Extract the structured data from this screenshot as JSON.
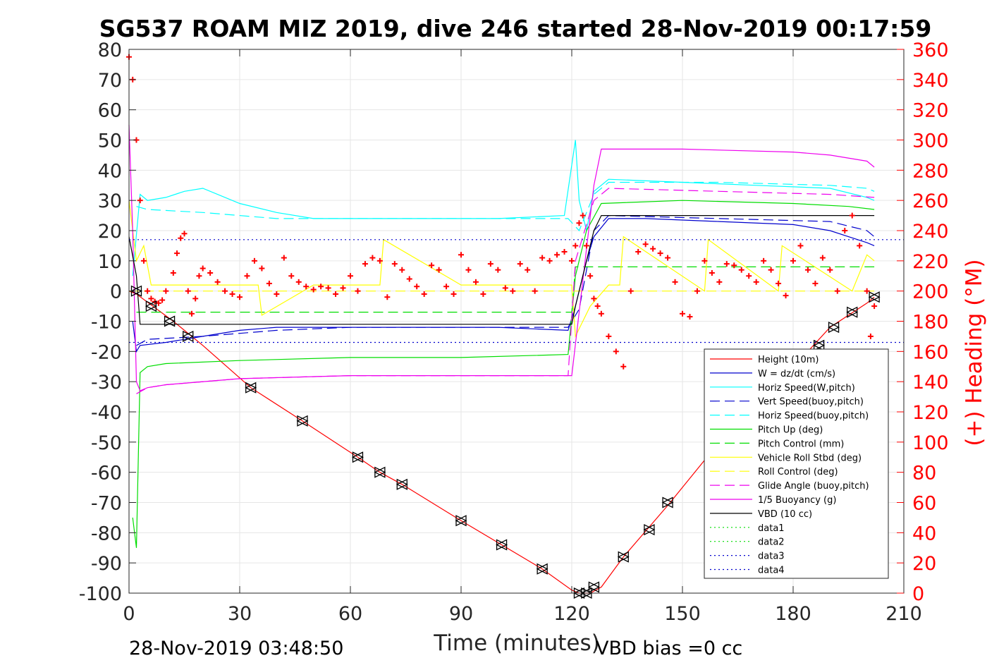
{
  "chart_data": {
    "type": "line",
    "title": "SG537 ROAM MIZ 2019, dive 246 started 28-Nov-2019 00:17:59",
    "xlabel": "Time (minutes)",
    "ylabel": "",
    "y2label": "(+) Heading (°M)",
    "xlim": [
      0,
      210
    ],
    "ylim": [
      -100,
      80
    ],
    "y2lim": [
      0,
      360
    ],
    "x_ticks": [
      "0",
      "30",
      "60",
      "90",
      "120",
      "150",
      "180",
      "210"
    ],
    "y_ticks": [
      "80",
      "70",
      "60",
      "50",
      "40",
      "30",
      "20",
      "10",
      "0",
      "-10",
      "-20",
      "-30",
      "-40",
      "-50",
      "-60",
      "-70",
      "-80",
      "-90",
      "-100"
    ],
    "y2_ticks": [
      "360",
      "340",
      "320",
      "300",
      "280",
      "260",
      "240",
      "220",
      "200",
      "180",
      "160",
      "140",
      "120",
      "100",
      "80",
      "60",
      "40",
      "20",
      "0"
    ],
    "grid": true,
    "legend_position": "bottom-right",
    "footer_left": "28-Nov-2019 03:48:50",
    "footer_right": "VBD bias =0 cc",
    "colors": {
      "red": "#ff0000",
      "blue": "#0000cd",
      "cyan": "#00ffff",
      "green": "#00dd00",
      "yellow": "#ffff00",
      "magenta": "#ee00ee",
      "black": "#000000"
    },
    "series": [
      {
        "name": "Height (10m)",
        "color": "#ff0000",
        "dash": "solid",
        "x": [
          0,
          2,
          12,
          20,
          33,
          47,
          62,
          68,
          74,
          90,
          101,
          112,
          120,
          122,
          125,
          128,
          134,
          146,
          160,
          175,
          190,
          200,
          202
        ],
        "y": [
          0,
          -1,
          -10,
          -18,
          -32,
          -43,
          -55,
          -60,
          -64,
          -76,
          -84,
          -92,
          -99,
          -100,
          -100,
          -98,
          -88,
          -71,
          -50,
          -32,
          -12,
          -4,
          -2
        ]
      },
      {
        "name": "W = dz/dt (cm/s)",
        "color": "#0000cd",
        "dash": "solid",
        "x": [
          1,
          2,
          3,
          10,
          20,
          30,
          40,
          60,
          80,
          100,
          119,
          121,
          124,
          126,
          130,
          140,
          160,
          180,
          190,
          195,
          200,
          202
        ],
        "y": [
          -10,
          -20,
          -18,
          -17,
          -15,
          -13,
          -12,
          -12,
          -12,
          -12,
          -13,
          -5,
          10,
          18,
          24,
          24,
          23,
          22,
          20,
          18,
          16,
          15
        ]
      },
      {
        "name": "Horiz Speed(W,pitch)",
        "color": "#00ffff",
        "dash": "solid",
        "x": [
          1,
          3,
          5,
          10,
          15,
          20,
          30,
          40,
          50,
          60,
          80,
          100,
          118,
          121,
          122,
          124,
          126,
          130,
          150,
          170,
          190,
          200,
          202
        ],
        "y": [
          5,
          32,
          30,
          31,
          33,
          34,
          29,
          26,
          24,
          24,
          24,
          24,
          25,
          50,
          30,
          20,
          33,
          37,
          36,
          35,
          34,
          31,
          30
        ]
      },
      {
        "name": "Vert Speed(buoy,pitch)",
        "color": "#0000cd",
        "dash": "dash",
        "x": [
          2,
          5,
          20,
          40,
          60,
          80,
          100,
          119,
          122,
          126,
          130,
          160,
          190,
          200,
          202
        ],
        "y": [
          -18,
          -16,
          -15,
          -13,
          -12,
          -12,
          -12,
          -12,
          -6,
          20,
          25,
          24,
          23,
          20,
          18
        ]
      },
      {
        "name": "Horiz Speed(buoy,pitch)",
        "color": "#00ffff",
        "dash": "dash",
        "x": [
          2,
          5,
          20,
          40,
          60,
          80,
          100,
          119,
          122,
          126,
          130,
          160,
          190,
          200,
          202
        ],
        "y": [
          28,
          27,
          26,
          24,
          24,
          24,
          24,
          24,
          20,
          32,
          36,
          36,
          35,
          34,
          33
        ]
      },
      {
        "name": "Pitch Up (deg)",
        "color": "#00dd00",
        "dash": "solid",
        "x": [
          1,
          2,
          3,
          5,
          10,
          30,
          60,
          90,
          119,
          121,
          124,
          128,
          150,
          180,
          195,
          202
        ],
        "y": [
          -75,
          -85,
          -27,
          -25,
          -24,
          -23,
          -22,
          -22,
          -21,
          5,
          20,
          29,
          30,
          29,
          28,
          27
        ]
      },
      {
        "name": "Pitch Control (mm)",
        "color": "#00dd00",
        "dash": "dash",
        "x": [
          2,
          10,
          120,
          121,
          200,
          202
        ],
        "y": [
          -7,
          -7,
          -7,
          8,
          8,
          8
        ]
      },
      {
        "name": "Vehicle Roll Stbd (deg)",
        "color": "#ffff00",
        "dash": "solid",
        "x": [
          0,
          2,
          4,
          6,
          20,
          35,
          36,
          50,
          60,
          68,
          69,
          90,
          112,
          120,
          121,
          125,
          130,
          133,
          134,
          156,
          157,
          176,
          177,
          196,
          200,
          202
        ],
        "y": [
          30,
          10,
          15,
          2,
          2,
          2,
          -8,
          2,
          2,
          2,
          17,
          2,
          2,
          2,
          -15,
          -5,
          2,
          2,
          18,
          0,
          17,
          0,
          15,
          0,
          12,
          10
        ]
      },
      {
        "name": "Roll Control (deg)",
        "color": "#ffff00",
        "dash": "dash",
        "x": [
          0,
          2,
          120,
          122,
          202
        ],
        "y": [
          0,
          0,
          0,
          0,
          0
        ]
      },
      {
        "name": "Glide Angle (buoy,pitch)",
        "color": "#ee00ee",
        "dash": "dash",
        "x": [
          2,
          5,
          10,
          30,
          60,
          90,
          119,
          121,
          126,
          130,
          160,
          190,
          202
        ],
        "y": [
          -34,
          -32,
          -31,
          -29,
          -28,
          -28,
          -28,
          10,
          30,
          34,
          33,
          32,
          31
        ]
      },
      {
        "name": "1/5 Buoyancy (g)",
        "color": "#ee00ee",
        "dash": "solid",
        "x": [
          0,
          1,
          2,
          3,
          5,
          10,
          30,
          60,
          90,
          119,
          120,
          126,
          128,
          150,
          180,
          190,
          200,
          202
        ],
        "y": [
          55,
          20,
          -30,
          -33,
          -32,
          -31,
          -29,
          -28,
          -28,
          -28,
          -28,
          35,
          47,
          47,
          46,
          45,
          43,
          41
        ]
      },
      {
        "name": "VBD (10 cc)",
        "color": "#000000",
        "dash": "solid",
        "x": [
          0,
          2,
          3,
          120,
          121,
          126,
          128,
          202
        ],
        "y": [
          18,
          5,
          -11,
          -11,
          -5,
          20,
          25,
          25
        ]
      },
      {
        "name": "data1",
        "color": "#00dd00",
        "dash": "dot",
        "x": [],
        "y": []
      },
      {
        "name": "data2",
        "color": "#00dd00",
        "dash": "dot",
        "x": [],
        "y": []
      },
      {
        "name": "data3",
        "color": "#0000cd",
        "dash": "dot",
        "x": [
          0,
          210
        ],
        "y": [
          17,
          17
        ]
      },
      {
        "name": "data4",
        "color": "#0000cd",
        "dash": "dot",
        "x": [
          0,
          210
        ],
        "y": [
          -17,
          -17
        ]
      }
    ],
    "heading": {
      "name": "(+) Heading (°M)",
      "color": "#ff0000",
      "x": [
        0,
        1,
        2,
        3,
        4,
        5,
        6,
        7,
        8,
        9,
        10,
        12,
        13,
        14,
        15,
        16,
        17,
        18,
        19,
        20,
        22,
        24,
        26,
        28,
        30,
        32,
        34,
        36,
        38,
        40,
        42,
        44,
        46,
        48,
        50,
        52,
        54,
        56,
        58,
        60,
        62,
        64,
        66,
        68,
        70,
        72,
        74,
        76,
        78,
        80,
        82,
        84,
        86,
        88,
        90,
        92,
        94,
        96,
        98,
        100,
        102,
        104,
        106,
        108,
        110,
        112,
        114,
        116,
        118,
        120,
        121,
        122,
        123,
        124,
        125,
        126,
        127,
        128,
        130,
        132,
        134,
        136,
        138,
        140,
        142,
        144,
        146,
        148,
        150,
        152,
        154,
        156,
        158,
        160,
        162,
        164,
        166,
        168,
        170,
        172,
        174,
        176,
        178,
        180,
        182,
        184,
        186,
        188,
        190,
        192,
        194,
        196,
        198,
        200,
        201,
        202
      ],
      "y": [
        355,
        340,
        300,
        260,
        220,
        200,
        195,
        193,
        192,
        194,
        200,
        212,
        225,
        235,
        238,
        200,
        185,
        195,
        210,
        215,
        212,
        206,
        200,
        198,
        196,
        210,
        220,
        215,
        205,
        198,
        222,
        210,
        206,
        203,
        201,
        203,
        202,
        198,
        202,
        210,
        200,
        218,
        222,
        220,
        196,
        218,
        214,
        208,
        203,
        198,
        217,
        214,
        203,
        198,
        224,
        214,
        206,
        198,
        218,
        214,
        202,
        200,
        218,
        214,
        200,
        222,
        220,
        224,
        226,
        220,
        230,
        245,
        250,
        230,
        210,
        195,
        190,
        185,
        170,
        160,
        150,
        200,
        226,
        231,
        228,
        225,
        222,
        206,
        185,
        183,
        200,
        220,
        212,
        206,
        218,
        217,
        214,
        210,
        206,
        220,
        214,
        205,
        197,
        220,
        230,
        214,
        205,
        222,
        214,
        200,
        240,
        250,
        230,
        200,
        170,
        190
      ]
    },
    "markers": {
      "color": "#000000",
      "points": [
        [
          2,
          0
        ],
        [
          6,
          -5
        ],
        [
          11,
          -10
        ],
        [
          16,
          -15
        ],
        [
          33,
          -32
        ],
        [
          47,
          -43
        ],
        [
          62,
          -55
        ],
        [
          68,
          -60
        ],
        [
          74,
          -64
        ],
        [
          90,
          -76
        ],
        [
          101,
          -84
        ],
        [
          112,
          -92
        ],
        [
          122,
          -100
        ],
        [
          124,
          -100
        ],
        [
          126,
          -98
        ],
        [
          134,
          -88
        ],
        [
          141,
          -79
        ],
        [
          146,
          -70
        ],
        [
          187,
          -18
        ],
        [
          191,
          -12
        ],
        [
          196,
          -7
        ],
        [
          202,
          -2
        ]
      ]
    }
  }
}
